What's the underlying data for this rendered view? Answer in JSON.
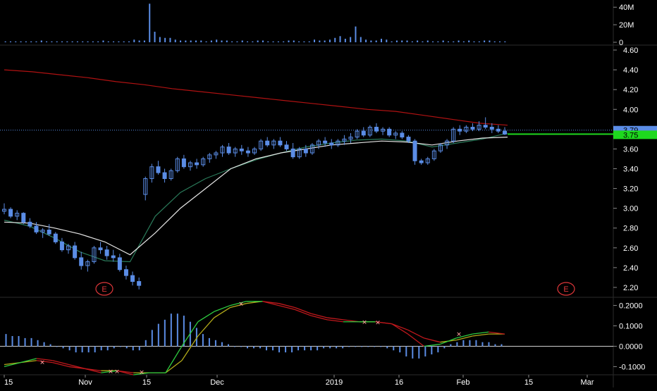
{
  "colors": {
    "background": "#000000",
    "panel_border": "#2b2b2b",
    "axis_text": "#ffffff",
    "candle": "#5b8de6",
    "volume": "#5b8de6",
    "ma_red": "#b01212",
    "ma_green": "#2a7a5a",
    "ma_white": "#e6e6e6",
    "macd_red": "#c0181c",
    "macd_yellow": "#b3ab1a",
    "macd_green": "#2ecc40",
    "price_tag_blue": "#5b8de6",
    "price_tag_green": "#1ed91e",
    "earnings": "#e0373a",
    "cross_marker": "#ff9f9f"
  },
  "icons": {
    "earnings_marker": "earnings-e-circle"
  },
  "chart_data": [
    {
      "type": "bar",
      "name": "volume",
      "y_ticks": [
        "40M",
        "20M",
        "0"
      ],
      "ylim": [
        0,
        45
      ],
      "unit": "M",
      "values": [
        1,
        1,
        1,
        1,
        1,
        1,
        1,
        2,
        1,
        1,
        1,
        1,
        1,
        1,
        1,
        1,
        1,
        1,
        1,
        2,
        1,
        1,
        1,
        1,
        1,
        3,
        2,
        2,
        44,
        12,
        6,
        5,
        5,
        3,
        2,
        2,
        2,
        2,
        2,
        1,
        2,
        3,
        2,
        2,
        1,
        1,
        2,
        1,
        1,
        2,
        2,
        1,
        1,
        1,
        1,
        2,
        2,
        1,
        1,
        1,
        3,
        2,
        2,
        3,
        5,
        7,
        4,
        6,
        18,
        6,
        3,
        2,
        2,
        4,
        3,
        1,
        2,
        2,
        2,
        1,
        2,
        1,
        2,
        1,
        1,
        2,
        1,
        1,
        2,
        1,
        2,
        1,
        1,
        2,
        2,
        1,
        1,
        1
      ]
    },
    {
      "type": "candlestick",
      "name": "price",
      "ylim": [
        2.1,
        4.65
      ],
      "y_ticks": [
        "4.60",
        "4.40",
        "4.20",
        "4.00",
        "3.80",
        "3.60",
        "3.40",
        "3.20",
        "3.00",
        "2.80",
        "2.60",
        "2.40",
        "2.20"
      ],
      "x_ticks": [
        "15",
        "Nov",
        "15",
        "Dec",
        "2019",
        "16",
        "Feb",
        "15",
        "Mar"
      ],
      "current_price_labels": [
        "3.79",
        "3.75"
      ],
      "earnings_labels": [
        "E",
        "E"
      ],
      "ohlc": [
        [
          2.97,
          3.05,
          2.94,
          2.99
        ],
        [
          2.99,
          3.01,
          2.9,
          2.92
        ],
        [
          2.92,
          2.98,
          2.88,
          2.95
        ],
        [
          2.95,
          2.96,
          2.84,
          2.86
        ],
        [
          2.86,
          2.9,
          2.8,
          2.82
        ],
        [
          2.82,
          2.86,
          2.74,
          2.76
        ],
        [
          2.76,
          2.8,
          2.7,
          2.78
        ],
        [
          2.78,
          2.84,
          2.72,
          2.74
        ],
        [
          2.74,
          2.76,
          2.64,
          2.66
        ],
        [
          2.66,
          2.7,
          2.56,
          2.58
        ],
        [
          2.58,
          2.64,
          2.54,
          2.62
        ],
        [
          2.62,
          2.66,
          2.48,
          2.5
        ],
        [
          2.5,
          2.56,
          2.38,
          2.42
        ],
        [
          2.42,
          2.48,
          2.36,
          2.46
        ],
        [
          2.46,
          2.62,
          2.44,
          2.6
        ],
        [
          2.6,
          2.66,
          2.54,
          2.58
        ],
        [
          2.58,
          2.62,
          2.48,
          2.52
        ],
        [
          2.52,
          2.58,
          2.46,
          2.5
        ],
        [
          2.5,
          2.54,
          2.36,
          2.38
        ],
        [
          2.38,
          2.42,
          2.28,
          2.32
        ],
        [
          2.32,
          2.36,
          2.22,
          2.26
        ],
        [
          2.26,
          2.3,
          2.18,
          2.22
        ],
        [
          3.14,
          3.32,
          3.08,
          3.3
        ],
        [
          3.3,
          3.45,
          3.26,
          3.42
        ],
        [
          3.42,
          3.48,
          3.34,
          3.36
        ],
        [
          3.36,
          3.4,
          3.26,
          3.3
        ],
        [
          3.3,
          3.4,
          3.28,
          3.38
        ],
        [
          3.38,
          3.52,
          3.36,
          3.5
        ],
        [
          3.5,
          3.54,
          3.4,
          3.42
        ],
        [
          3.42,
          3.48,
          3.38,
          3.46
        ],
        [
          3.46,
          3.5,
          3.4,
          3.44
        ],
        [
          3.44,
          3.52,
          3.42,
          3.5
        ],
        [
          3.5,
          3.56,
          3.46,
          3.54
        ],
        [
          3.54,
          3.58,
          3.5,
          3.56
        ],
        [
          3.56,
          3.64,
          3.52,
          3.62
        ],
        [
          3.62,
          3.66,
          3.54,
          3.56
        ],
        [
          3.56,
          3.62,
          3.52,
          3.6
        ],
        [
          3.6,
          3.64,
          3.54,
          3.58
        ],
        [
          3.58,
          3.62,
          3.52,
          3.56
        ],
        [
          3.56,
          3.62,
          3.54,
          3.6
        ],
        [
          3.6,
          3.7,
          3.58,
          3.68
        ],
        [
          3.68,
          3.72,
          3.62,
          3.64
        ],
        [
          3.64,
          3.7,
          3.6,
          3.68
        ],
        [
          3.68,
          3.72,
          3.62,
          3.64
        ],
        [
          3.64,
          3.68,
          3.58,
          3.6
        ],
        [
          3.6,
          3.66,
          3.5,
          3.52
        ],
        [
          3.52,
          3.62,
          3.5,
          3.6
        ],
        [
          3.6,
          3.64,
          3.52,
          3.56
        ],
        [
          3.56,
          3.66,
          3.54,
          3.64
        ],
        [
          3.64,
          3.7,
          3.6,
          3.68
        ],
        [
          3.68,
          3.72,
          3.62,
          3.66
        ],
        [
          3.66,
          3.7,
          3.6,
          3.64
        ],
        [
          3.64,
          3.7,
          3.62,
          3.68
        ],
        [
          3.68,
          3.74,
          3.64,
          3.7
        ],
        [
          3.7,
          3.76,
          3.66,
          3.72
        ],
        [
          3.72,
          3.8,
          3.7,
          3.78
        ],
        [
          3.78,
          3.82,
          3.72,
          3.74
        ],
        [
          3.74,
          3.84,
          3.72,
          3.82
        ],
        [
          3.82,
          3.86,
          3.76,
          3.78
        ],
        [
          3.78,
          3.82,
          3.74,
          3.8
        ],
        [
          3.8,
          3.82,
          3.72,
          3.74
        ],
        [
          3.74,
          3.78,
          3.7,
          3.76
        ],
        [
          3.76,
          3.78,
          3.7,
          3.72
        ],
        [
          3.72,
          3.74,
          3.66,
          3.68
        ],
        [
          3.68,
          3.7,
          3.44,
          3.48
        ],
        [
          3.48,
          3.5,
          3.44,
          3.46
        ],
        [
          3.46,
          3.52,
          3.44,
          3.5
        ],
        [
          3.5,
          3.6,
          3.48,
          3.58
        ],
        [
          3.58,
          3.66,
          3.56,
          3.64
        ],
        [
          3.64,
          3.7,
          3.6,
          3.68
        ],
        [
          3.68,
          3.82,
          3.66,
          3.8
        ],
        [
          3.8,
          3.84,
          3.74,
          3.78
        ],
        [
          3.78,
          3.84,
          3.76,
          3.82
        ],
        [
          3.82,
          3.86,
          3.78,
          3.8
        ],
        [
          3.8,
          3.88,
          3.78,
          3.84
        ],
        [
          3.84,
          3.92,
          3.8,
          3.82
        ],
        [
          3.82,
          3.86,
          3.76,
          3.8
        ],
        [
          3.8,
          3.84,
          3.76,
          3.78
        ],
        [
          3.78,
          3.82,
          3.74,
          3.75
        ]
      ],
      "ma_slow_red": [
        4.4,
        4.38,
        4.35,
        4.32,
        4.28,
        4.25,
        4.21,
        4.18,
        4.15,
        4.12,
        4.09,
        4.06,
        4.03,
        4.0,
        3.98,
        3.94,
        3.9,
        3.86,
        3.84
      ],
      "ma_fast_green": [
        2.88,
        2.82,
        2.7,
        2.56,
        2.47,
        2.46,
        2.92,
        3.16,
        3.3,
        3.4,
        3.49,
        3.56,
        3.62,
        3.66,
        3.69,
        3.7,
        3.68,
        3.62,
        3.66,
        3.7,
        3.76
      ],
      "ma_mid_white": [
        2.86,
        2.85,
        2.8,
        2.74,
        2.66,
        2.53,
        2.75,
        3.0,
        3.2,
        3.4,
        3.5,
        3.56,
        3.6,
        3.64,
        3.66,
        3.68,
        3.67,
        3.64,
        3.68,
        3.71,
        3.72
      ]
    },
    {
      "type": "line",
      "name": "macd",
      "ylim": [
        -0.14,
        0.24
      ],
      "y_ticks": [
        "0.2000",
        "0.1000",
        "0.0000",
        "-0.1000"
      ],
      "histogram": [
        0.06,
        0.05,
        0.05,
        0.04,
        0.04,
        0.03,
        0.02,
        0.01,
        0.0,
        -0.01,
        -0.02,
        -0.03,
        -0.03,
        -0.03,
        -0.03,
        -0.02,
        -0.02,
        -0.01,
        0.0,
        -0.01,
        -0.02,
        -0.02,
        0.03,
        0.08,
        0.11,
        0.13,
        0.16,
        0.16,
        0.15,
        0.12,
        0.09,
        0.06,
        0.04,
        0.03,
        0.02,
        0.01,
        0.0,
        0.0,
        -0.01,
        -0.01,
        -0.01,
        -0.02,
        -0.02,
        -0.03,
        -0.03,
        -0.03,
        -0.02,
        -0.02,
        -0.02,
        -0.02,
        -0.01,
        -0.01,
        -0.01,
        -0.01,
        0.0,
        0.0,
        0.0,
        0.0,
        0.0,
        0.0,
        -0.01,
        -0.02,
        -0.03,
        -0.05,
        -0.06,
        -0.06,
        -0.05,
        -0.04,
        -0.03,
        -0.01,
        0.01,
        0.02,
        0.03,
        0.03,
        0.03,
        0.02,
        0.02,
        0.01,
        0.01
      ],
      "macd_line": [
        -0.1,
        -0.08,
        -0.06,
        -0.07,
        -0.09,
        -0.11,
        -0.13,
        -0.12,
        -0.14,
        -0.13,
        -0.13,
        0.0,
        0.12,
        0.17,
        0.2,
        0.22,
        0.22,
        0.2,
        0.18,
        0.15,
        0.13,
        0.12,
        0.12,
        0.12,
        0.11,
        0.06,
        0.0,
        0.01,
        0.04,
        0.06,
        0.07,
        0.06
      ],
      "signal_line": [
        -0.09,
        -0.08,
        -0.07,
        -0.08,
        -0.1,
        -0.11,
        -0.12,
        -0.12,
        -0.13,
        -0.13,
        -0.13,
        -0.07,
        0.05,
        0.14,
        0.19,
        0.21,
        0.22,
        0.21,
        0.19,
        0.16,
        0.14,
        0.13,
        0.12,
        0.12,
        0.11,
        0.08,
        0.04,
        0.02,
        0.03,
        0.05,
        0.06,
        0.06
      ]
    }
  ]
}
